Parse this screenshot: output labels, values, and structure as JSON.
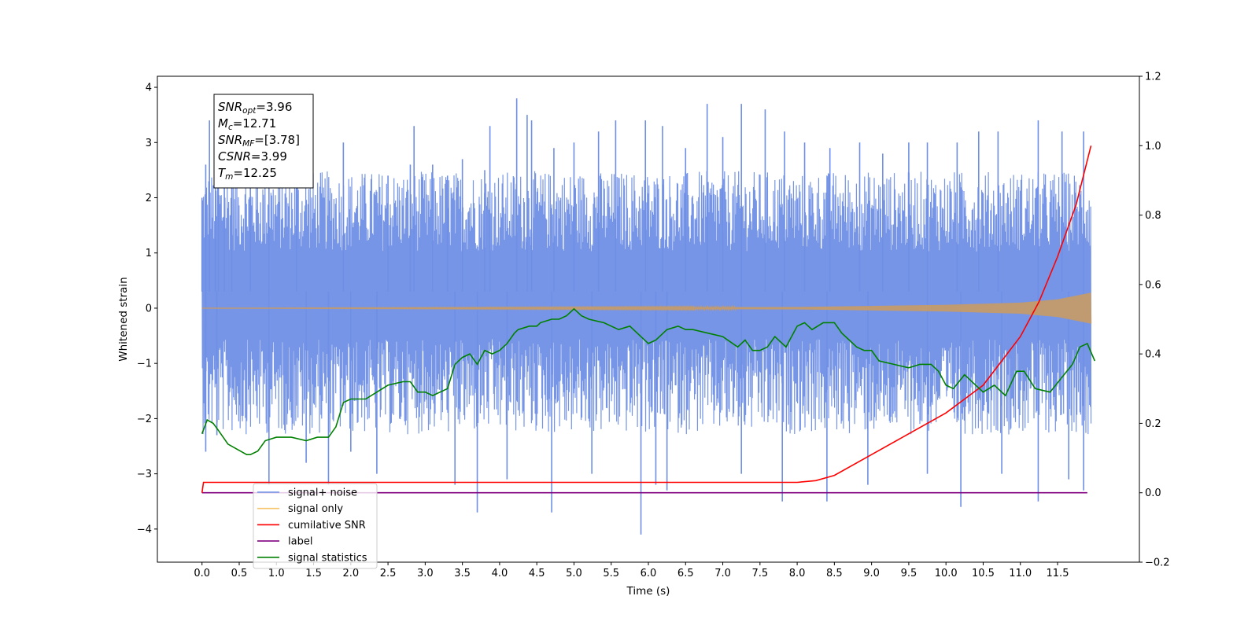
{
  "chart_data": {
    "type": "line",
    "xlabel": "Time (s)",
    "ylabel": "Whitened strain",
    "y2label": "",
    "xlim": [
      -0.6,
      12.6
    ],
    "ylim": [
      -4.6,
      4.2
    ],
    "y2lim": [
      -0.2,
      1.2
    ],
    "xticks": [
      0.0,
      0.5,
      1.0,
      1.5,
      2.0,
      2.5,
      3.0,
      3.5,
      4.0,
      4.5,
      5.0,
      5.5,
      6.0,
      6.5,
      7.0,
      7.5,
      8.0,
      8.5,
      9.0,
      9.5,
      10.0,
      10.5,
      11.0,
      11.5
    ],
    "xtick_labels": [
      "0.0",
      "0.5",
      "1.0",
      "1.5",
      "2.0",
      "2.5",
      "3.0",
      "3.5",
      "4.0",
      "4.5",
      "5.0",
      "5.5",
      "6.0",
      "6.5",
      "7.0",
      "7.5",
      "8.0",
      "8.5",
      "9.0",
      "9.5",
      "10.0",
      "10.5",
      "11.0",
      "11.5"
    ],
    "yticks": [
      4,
      3,
      2,
      1,
      0,
      -1,
      -2,
      -3,
      -4
    ],
    "ytick_labels": [
      "4",
      "3",
      "2",
      "1",
      "0",
      "−1",
      "−2",
      "−3",
      "−4"
    ],
    "y2ticks": [
      1.2,
      1.0,
      0.8,
      0.6,
      0.4,
      0.2,
      0.0,
      -0.2
    ],
    "y2tick_labels": [
      "1.2",
      "1.0",
      "0.8",
      "0.6",
      "0.4",
      "0.2",
      "0.0",
      "−0.2"
    ],
    "annotation": [
      {
        "base": "SNR",
        "sub": "opt",
        "rest": "=3.96"
      },
      {
        "base": "M",
        "sub": "c",
        "rest": "=12.71"
      },
      {
        "base": "SNR",
        "sub": "MF",
        "rest": "=[3.78]"
      },
      {
        "base": "CSNR",
        "sub": "",
        "rest": "=3.99"
      },
      {
        "base": "T",
        "sub": "m",
        "rest": "=12.25"
      }
    ],
    "legend_position": "lower-left",
    "legend": [
      {
        "label": "signal+ noise",
        "color": "#6f8fe6"
      },
      {
        "label": "signal only",
        "color": "#f7c46b"
      },
      {
        "label": "cumilative SNR",
        "color": "#ff0000"
      },
      {
        "label": "label",
        "color": "#800080"
      },
      {
        "label": "signal statistics",
        "color": "#008000"
      }
    ],
    "series": [
      {
        "name": "signal+ noise",
        "axis": "left",
        "color": "#6f8fe6",
        "x_range": [
          0.0,
          11.95
        ],
        "band_center": 0.3,
        "band_min": -2.0,
        "band_max": 2.0,
        "peaks": [
          [
            0.0,
            2.0
          ],
          [
            0.05,
            2.6
          ],
          [
            0.1,
            3.4
          ],
          [
            0.18,
            2.9
          ],
          [
            0.22,
            2.3
          ],
          [
            0.3,
            2.6
          ],
          [
            0.4,
            2.5
          ],
          [
            0.65,
            2.7
          ],
          [
            0.9,
            2.6
          ],
          [
            1.27,
            2.8
          ],
          [
            1.9,
            3.0
          ],
          [
            2.5,
            2.4
          ],
          [
            2.8,
            2.6
          ],
          [
            2.85,
            3.3
          ],
          [
            3.1,
            2.6
          ],
          [
            3.3,
            2.4
          ],
          [
            3.5,
            2.7
          ],
          [
            3.8,
            2.5
          ],
          [
            3.87,
            3.3
          ],
          [
            4.23,
            3.8
          ],
          [
            4.37,
            3.5
          ],
          [
            4.43,
            3.4
          ],
          [
            4.73,
            2.9
          ],
          [
            5.0,
            3.0
          ],
          [
            5.33,
            3.2
          ],
          [
            5.56,
            3.4
          ],
          [
            5.96,
            3.4
          ],
          [
            6.19,
            3.3
          ],
          [
            6.5,
            2.9
          ],
          [
            6.79,
            3.7
          ],
          [
            7.0,
            3.1
          ],
          [
            7.25,
            3.7
          ],
          [
            7.57,
            3.6
          ],
          [
            7.83,
            3.2
          ],
          [
            8.1,
            3.0
          ],
          [
            8.44,
            2.9
          ],
          [
            8.84,
            3.0
          ],
          [
            9.15,
            2.8
          ],
          [
            9.5,
            3.0
          ],
          [
            9.75,
            3.0
          ],
          [
            10.15,
            3.0
          ],
          [
            10.44,
            3.2
          ],
          [
            10.7,
            3.2
          ],
          [
            11.24,
            3.4
          ],
          [
            11.56,
            3.2
          ],
          [
            11.85,
            3.2
          ]
        ],
        "troughs": [
          [
            0.05,
            -2.6
          ],
          [
            0.2,
            -2.3
          ],
          [
            0.9,
            -3.2
          ],
          [
            1.4,
            -2.8
          ],
          [
            1.7,
            -3.2
          ],
          [
            2.0,
            -2.6
          ],
          [
            2.35,
            -3.0
          ],
          [
            3.4,
            -3.2
          ],
          [
            3.7,
            -3.7
          ],
          [
            4.1,
            -3.1
          ],
          [
            4.7,
            -3.7
          ],
          [
            5.24,
            -3.0
          ],
          [
            5.9,
            -4.1
          ],
          [
            6.1,
            -3.2
          ],
          [
            6.25,
            -3.3
          ],
          [
            7.25,
            -3.0
          ],
          [
            7.8,
            -3.5
          ],
          [
            8.4,
            -3.5
          ],
          [
            8.95,
            -3.2
          ],
          [
            9.75,
            -3.0
          ],
          [
            10.2,
            -3.6
          ],
          [
            10.75,
            -3.0
          ],
          [
            11.24,
            -3.5
          ],
          [
            11.65,
            -3.1
          ],
          [
            11.85,
            -3.3
          ]
        ]
      },
      {
        "name": "signal only",
        "axis": "left",
        "color": "#f7c46b",
        "x_range": [
          0.0,
          11.95
        ],
        "envelope_points": [
          [
            0.0,
            0.0
          ],
          [
            8.0,
            0.02
          ],
          [
            9.0,
            0.04
          ],
          [
            10.0,
            0.06
          ],
          [
            10.5,
            0.08
          ],
          [
            11.0,
            0.1
          ],
          [
            11.5,
            0.16
          ],
          [
            11.95,
            0.28
          ]
        ]
      },
      {
        "name": "cumilative SNR",
        "axis": "right",
        "color": "#ff0000",
        "points": [
          [
            0.0,
            0.0
          ],
          [
            0.02,
            0.03
          ],
          [
            8.0,
            0.03
          ],
          [
            8.25,
            0.035
          ],
          [
            8.5,
            0.05
          ],
          [
            9.0,
            0.11
          ],
          [
            9.5,
            0.17
          ],
          [
            10.0,
            0.23
          ],
          [
            10.5,
            0.31
          ],
          [
            11.0,
            0.45
          ],
          [
            11.25,
            0.55
          ],
          [
            11.5,
            0.68
          ],
          [
            11.75,
            0.83
          ],
          [
            11.95,
            1.0
          ]
        ]
      },
      {
        "name": "label",
        "axis": "right",
        "color": "#800080",
        "points": [
          [
            0.0,
            0.0
          ],
          [
            11.9,
            0.0
          ]
        ]
      },
      {
        "name": "signal statistics",
        "axis": "right",
        "color": "#008000",
        "points": [
          [
            0.0,
            0.17
          ],
          [
            0.07,
            0.21
          ],
          [
            0.15,
            0.2
          ],
          [
            0.22,
            0.18
          ],
          [
            0.35,
            0.14
          ],
          [
            0.6,
            0.11
          ],
          [
            0.65,
            0.11
          ],
          [
            0.75,
            0.12
          ],
          [
            0.85,
            0.15
          ],
          [
            1.0,
            0.16
          ],
          [
            1.2,
            0.16
          ],
          [
            1.4,
            0.15
          ],
          [
            1.55,
            0.16
          ],
          [
            1.7,
            0.16
          ],
          [
            1.8,
            0.19
          ],
          [
            1.9,
            0.26
          ],
          [
            2.0,
            0.27
          ],
          [
            2.2,
            0.27
          ],
          [
            2.35,
            0.29
          ],
          [
            2.5,
            0.31
          ],
          [
            2.7,
            0.32
          ],
          [
            2.8,
            0.32
          ],
          [
            2.9,
            0.29
          ],
          [
            3.0,
            0.29
          ],
          [
            3.1,
            0.28
          ],
          [
            3.3,
            0.3
          ],
          [
            3.4,
            0.37
          ],
          [
            3.5,
            0.39
          ],
          [
            3.6,
            0.4
          ],
          [
            3.7,
            0.37
          ],
          [
            3.8,
            0.41
          ],
          [
            3.9,
            0.4
          ],
          [
            4.0,
            0.41
          ],
          [
            4.1,
            0.43
          ],
          [
            4.2,
            0.46
          ],
          [
            4.25,
            0.47
          ],
          [
            4.4,
            0.48
          ],
          [
            4.5,
            0.48
          ],
          [
            4.55,
            0.49
          ],
          [
            4.7,
            0.5
          ],
          [
            4.8,
            0.5
          ],
          [
            4.9,
            0.51
          ],
          [
            5.0,
            0.53
          ],
          [
            5.1,
            0.51
          ],
          [
            5.2,
            0.5
          ],
          [
            5.4,
            0.49
          ],
          [
            5.6,
            0.47
          ],
          [
            5.75,
            0.48
          ],
          [
            5.9,
            0.45
          ],
          [
            6.0,
            0.43
          ],
          [
            6.1,
            0.44
          ],
          [
            6.25,
            0.47
          ],
          [
            6.4,
            0.48
          ],
          [
            6.5,
            0.47
          ],
          [
            6.6,
            0.47
          ],
          [
            6.8,
            0.46
          ],
          [
            7.0,
            0.45
          ],
          [
            7.2,
            0.42
          ],
          [
            7.3,
            0.44
          ],
          [
            7.4,
            0.41
          ],
          [
            7.5,
            0.41
          ],
          [
            7.6,
            0.42
          ],
          [
            7.7,
            0.45
          ],
          [
            7.85,
            0.42
          ],
          [
            8.0,
            0.48
          ],
          [
            8.1,
            0.49
          ],
          [
            8.2,
            0.47
          ],
          [
            8.35,
            0.49
          ],
          [
            8.5,
            0.49
          ],
          [
            8.6,
            0.46
          ],
          [
            8.7,
            0.44
          ],
          [
            8.8,
            0.42
          ],
          [
            8.9,
            0.41
          ],
          [
            9.0,
            0.41
          ],
          [
            9.1,
            0.38
          ],
          [
            9.3,
            0.37
          ],
          [
            9.5,
            0.36
          ],
          [
            9.65,
            0.37
          ],
          [
            9.8,
            0.37
          ],
          [
            9.9,
            0.35
          ],
          [
            10.0,
            0.31
          ],
          [
            10.1,
            0.3
          ],
          [
            10.25,
            0.34
          ],
          [
            10.4,
            0.31
          ],
          [
            10.5,
            0.29
          ],
          [
            10.65,
            0.31
          ],
          [
            10.8,
            0.28
          ],
          [
            10.95,
            0.35
          ],
          [
            11.05,
            0.35
          ],
          [
            11.2,
            0.3
          ],
          [
            11.4,
            0.29
          ],
          [
            11.55,
            0.33
          ],
          [
            11.7,
            0.37
          ],
          [
            11.8,
            0.42
          ],
          [
            11.9,
            0.43
          ],
          [
            12.0,
            0.38
          ]
        ]
      }
    ]
  }
}
